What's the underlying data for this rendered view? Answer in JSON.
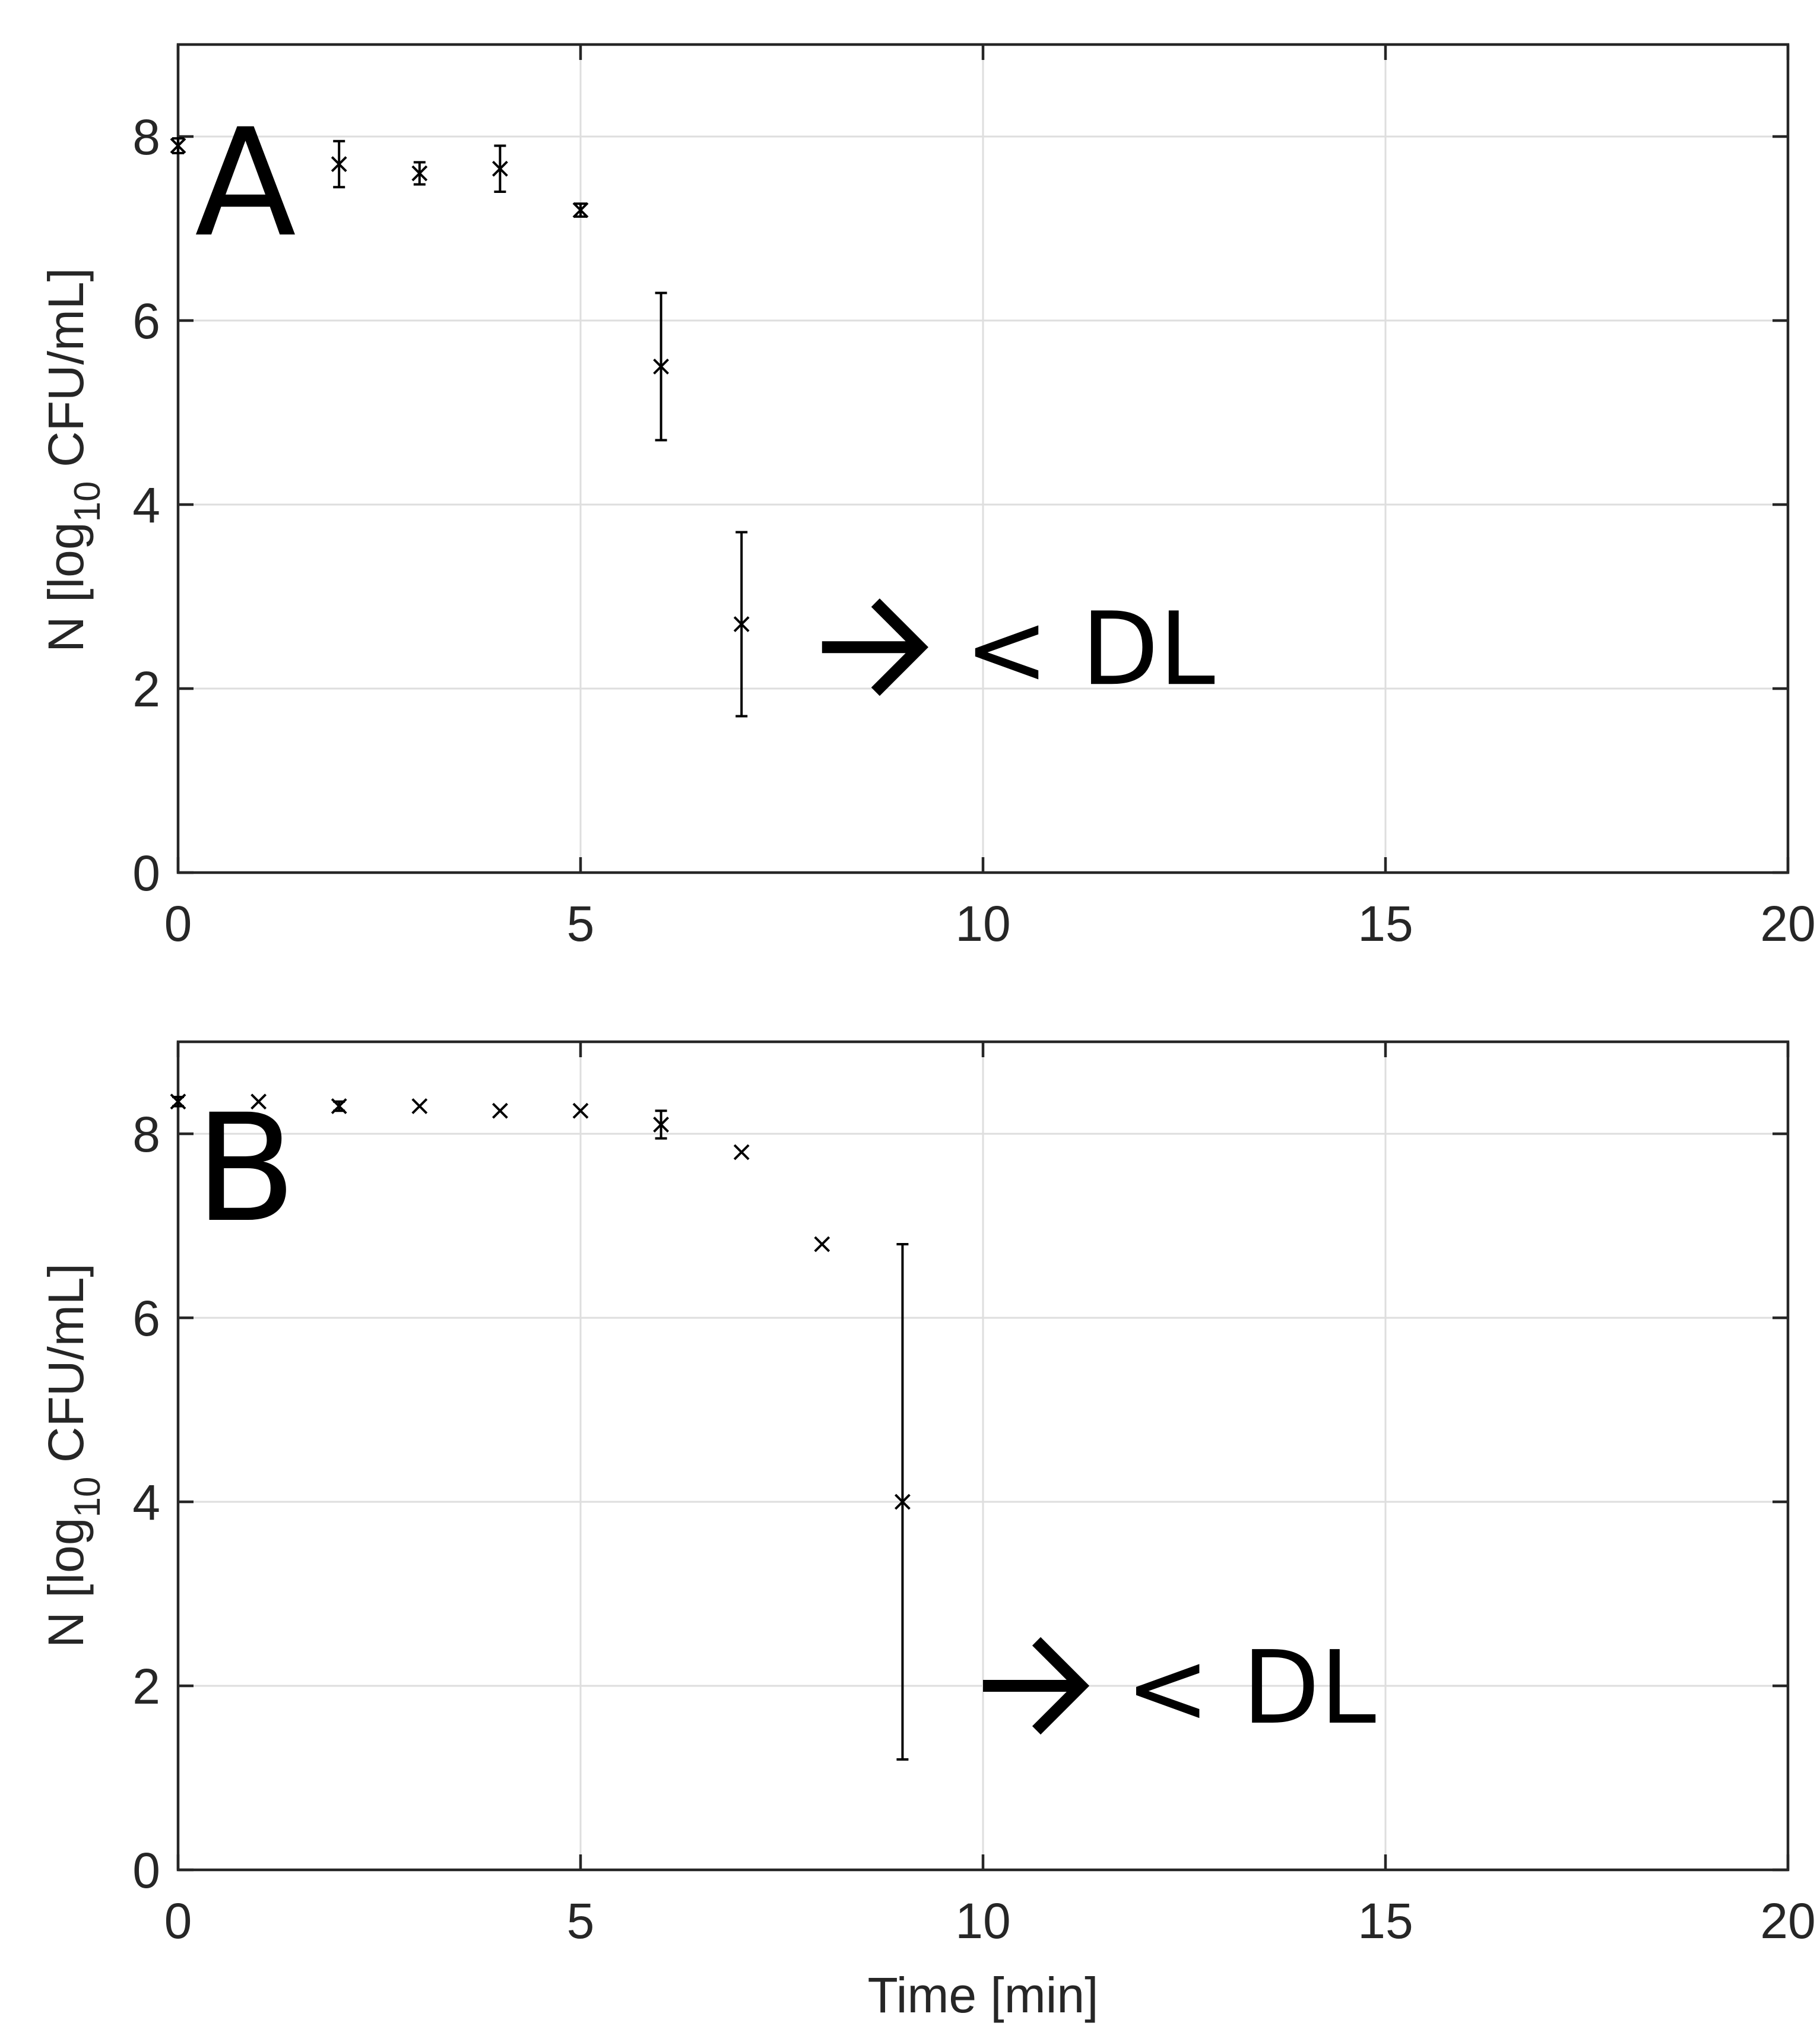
{
  "chart_data": [
    {
      "type": "scatter",
      "panel_label": "A",
      "xlabel": "",
      "ylabel": {
        "prefix": "N [log",
        "subscript": "10",
        "suffix": " CFU/mL]"
      },
      "xlim": [
        0,
        20
      ],
      "ylim": [
        0,
        9
      ],
      "xticks": [
        0,
        5,
        10,
        15,
        20
      ],
      "yticks": [
        0,
        2,
        4,
        6,
        8
      ],
      "grid": true,
      "marker": "x",
      "points": [
        {
          "x": 0,
          "y": 7.9,
          "err": 0.08
        },
        {
          "x": 2,
          "y": 7.7,
          "err": 0.25
        },
        {
          "x": 3,
          "y": 7.6,
          "err": 0.12
        },
        {
          "x": 4,
          "y": 7.65,
          "err": 0.25
        },
        {
          "x": 5,
          "y": 7.2,
          "err": 0.07
        },
        {
          "x": 6,
          "y": 5.5,
          "err": 0.8
        },
        {
          "x": 7,
          "y": 2.7,
          "err": 1.0
        }
      ],
      "annotation": {
        "text": "< DL",
        "arrow": "right-arrow",
        "x": 8,
        "y": 2.45
      }
    },
    {
      "type": "scatter",
      "panel_label": "B",
      "xlabel": "Time [min]",
      "ylabel": {
        "prefix": "N [log",
        "subscript": "10",
        "suffix": " CFU/mL]"
      },
      "xlim": [
        0,
        20
      ],
      "ylim": [
        0,
        9
      ],
      "xticks": [
        0,
        5,
        10,
        15,
        20
      ],
      "yticks": [
        0,
        2,
        4,
        6,
        8
      ],
      "grid": true,
      "marker": "x",
      "points": [
        {
          "x": 0,
          "y": 8.35,
          "err": 0.05
        },
        {
          "x": 1,
          "y": 8.35,
          "err": 0
        },
        {
          "x": 2,
          "y": 8.3,
          "err": 0.05
        },
        {
          "x": 3,
          "y": 8.3,
          "err": 0
        },
        {
          "x": 4,
          "y": 8.25,
          "err": 0
        },
        {
          "x": 5,
          "y": 8.25,
          "err": 0
        },
        {
          "x": 6,
          "y": 8.1,
          "err": 0.15
        },
        {
          "x": 7,
          "y": 7.8,
          "err": 0
        },
        {
          "x": 8,
          "y": 6.8,
          "err": 0
        },
        {
          "x": 9,
          "y": 4.0,
          "err": 2.8
        }
      ],
      "annotation": {
        "text": "< DL",
        "arrow": "right-arrow",
        "x": 10,
        "y": 2.0
      }
    }
  ]
}
